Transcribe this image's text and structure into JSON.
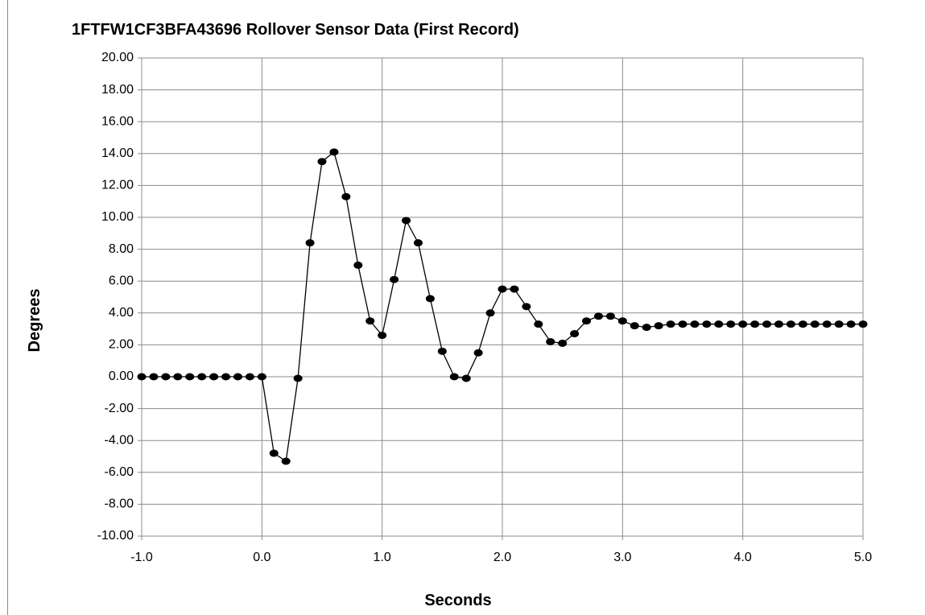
{
  "chart_data": {
    "type": "line",
    "title": "1FTFW1CF3BFA43696  Rollover Sensor Data (First Record)",
    "xlabel": "Seconds",
    "ylabel": "Degrees",
    "xlim": [
      -1.0,
      5.0
    ],
    "ylim": [
      -10.0,
      20.0
    ],
    "xticks": [
      "-1.0",
      "0.0",
      "1.0",
      "2.0",
      "3.0",
      "4.0",
      "5.0"
    ],
    "yticks": [
      "20.00",
      "18.00",
      "16.00",
      "14.00",
      "12.00",
      "10.00",
      "8.00",
      "6.00",
      "4.00",
      "2.00",
      "0.00",
      "-2.00",
      "-4.00",
      "-6.00",
      "-8.00",
      "-10.00"
    ],
    "grid": true,
    "marker": "circle",
    "line_color": "#000000",
    "series": [
      {
        "x": [
          -1.0,
          -0.9,
          -0.8,
          -0.7,
          -0.6,
          -0.5,
          -0.4,
          -0.3,
          -0.2,
          -0.1,
          0.0,
          0.1,
          0.2,
          0.3,
          0.4,
          0.5,
          0.6,
          0.7,
          0.8,
          0.9,
          1.0,
          1.1,
          1.2,
          1.3,
          1.4,
          1.5,
          1.6,
          1.7,
          1.8,
          1.9,
          2.0,
          2.1,
          2.2,
          2.3,
          2.4,
          2.5,
          2.6,
          2.7,
          2.8,
          2.9,
          3.0,
          3.1,
          3.2,
          3.3,
          3.4,
          3.5,
          3.6,
          3.7,
          3.8,
          3.9,
          4.0,
          4.1,
          4.2,
          4.3,
          4.4,
          4.5,
          4.6,
          4.7,
          4.8,
          4.9,
          5.0
        ],
        "values": [
          0,
          0,
          0,
          0,
          0,
          0,
          0,
          0,
          0,
          0,
          0,
          -4.8,
          -5.3,
          -0.1,
          8.4,
          13.5,
          14.1,
          11.3,
          7.0,
          3.5,
          2.6,
          6.1,
          9.8,
          8.4,
          4.9,
          1.6,
          0,
          -0.1,
          1.5,
          4.0,
          5.5,
          5.5,
          4.4,
          3.3,
          2.2,
          2.1,
          2.7,
          3.5,
          3.8,
          3.8,
          3.5,
          3.2,
          3.1,
          3.2,
          3.3,
          3.3,
          3.3,
          3.3,
          3.3,
          3.3,
          3.3,
          3.3,
          3.3,
          3.3,
          3.3,
          3.3,
          3.3,
          3.3,
          3.3,
          3.3,
          3.3
        ]
      }
    ]
  }
}
